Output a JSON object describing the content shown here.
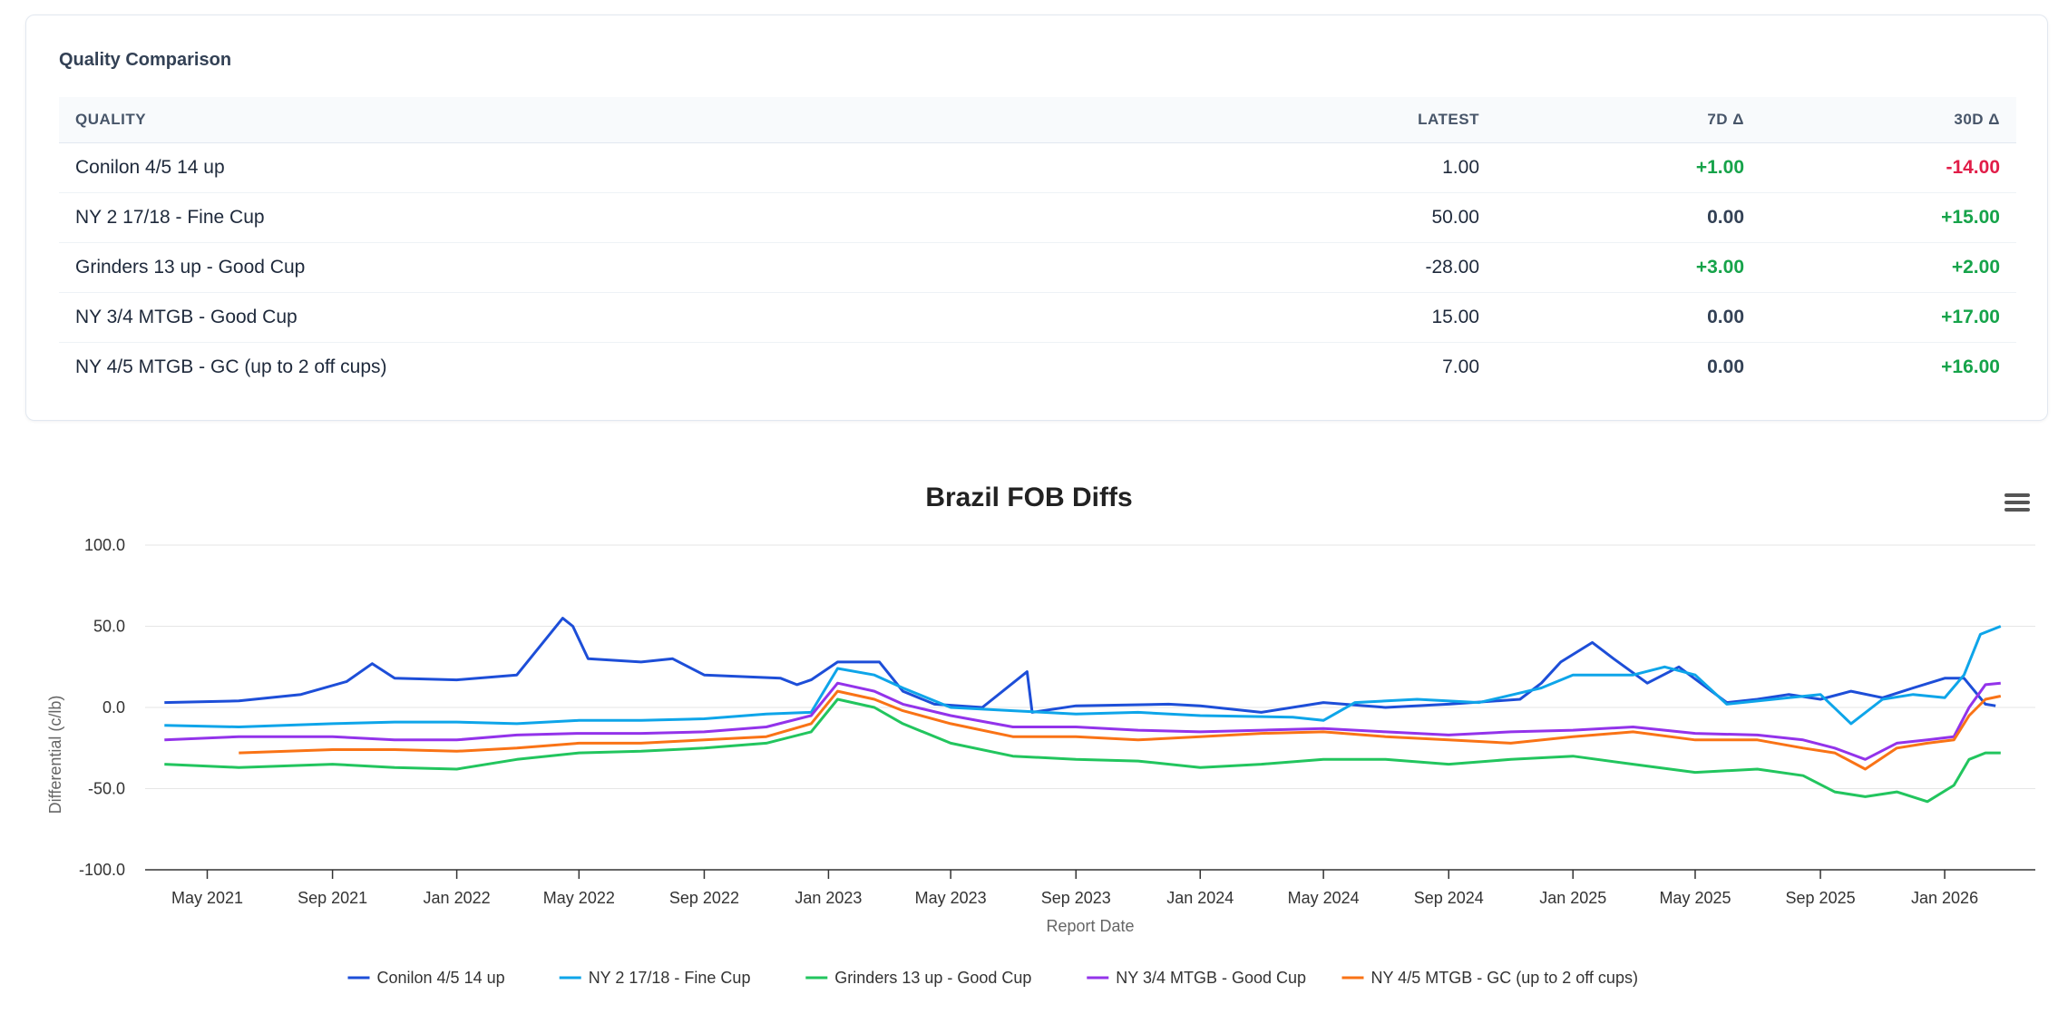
{
  "comparison": {
    "title": "Quality Comparison",
    "headers": {
      "quality": "QUALITY",
      "latest": "LATEST",
      "d7": "7D Δ",
      "d30": "30D Δ"
    },
    "rows": [
      {
        "quality": "Conilon 4/5 14 up",
        "latest": "1.00",
        "d7": "+1.00",
        "d30": "-14.00"
      },
      {
        "quality": "NY 2 17/18 - Fine Cup",
        "latest": "50.00",
        "d7": "0.00",
        "d30": "+15.00"
      },
      {
        "quality": "Grinders 13 up - Good Cup",
        "latest": "-28.00",
        "d7": "+3.00",
        "d30": "+2.00"
      },
      {
        "quality": "NY 3/4 MTGB - Good Cup",
        "latest": "15.00",
        "d7": "0.00",
        "d30": "+17.00"
      },
      {
        "quality": "NY 4/5 MTGB - GC (up to 2 off cups)",
        "latest": "7.00",
        "d7": "0.00",
        "d30": "+16.00"
      }
    ]
  },
  "colors": {
    "positive": "#16a34a",
    "negative": "#e11d48",
    "neutral": "#334155"
  },
  "chart_menu_icon": "hamburger-menu-icon",
  "chart_data": {
    "type": "line",
    "title": "Brazil FOB Diffs",
    "xlabel": "Report Date",
    "ylabel": "Differential (c/lb)",
    "ylim": [
      -100,
      100
    ],
    "yticks": [
      100,
      50,
      0,
      -50,
      -100
    ],
    "ytick_labels": [
      "100.0",
      "50.0",
      "0.0",
      "-50.0",
      "-100.0"
    ],
    "xlim": [
      "2021-03-01",
      "2026-03-31"
    ],
    "xticks": [
      "2021-05-01",
      "2021-09-01",
      "2022-01-01",
      "2022-05-01",
      "2022-09-01",
      "2023-01-01",
      "2023-05-01",
      "2023-09-01",
      "2024-01-01",
      "2024-05-01",
      "2024-09-01",
      "2025-01-01",
      "2025-05-01",
      "2025-09-01",
      "2026-01-01"
    ],
    "xtick_labels": [
      "May 2021",
      "Sep 2021",
      "Jan 2022",
      "May 2022",
      "Sep 2022",
      "Jan 2023",
      "May 2023",
      "Sep 2023",
      "Jan 2024",
      "May 2024",
      "Sep 2024",
      "Jan 2025",
      "May 2025",
      "Sep 2025",
      "Jan 2026"
    ],
    "grid": true,
    "legend": "bottom",
    "series": [
      {
        "name": "Conilon 4/5 14 up",
        "color": "#1d4ed8",
        "points": [
          [
            "2021-03-20",
            3
          ],
          [
            "2021-06-01",
            4
          ],
          [
            "2021-08-01",
            8
          ],
          [
            "2021-09-15",
            16
          ],
          [
            "2021-10-10",
            27
          ],
          [
            "2021-11-01",
            18
          ],
          [
            "2022-01-01",
            17
          ],
          [
            "2022-03-01",
            20
          ],
          [
            "2022-04-15",
            55
          ],
          [
            "2022-04-25",
            50
          ],
          [
            "2022-05-10",
            30
          ],
          [
            "2022-07-01",
            28
          ],
          [
            "2022-08-01",
            30
          ],
          [
            "2022-09-01",
            20
          ],
          [
            "2022-11-15",
            18
          ],
          [
            "2022-12-01",
            14
          ],
          [
            "2022-12-15",
            17
          ],
          [
            "2023-01-10",
            28
          ],
          [
            "2023-02-20",
            28
          ],
          [
            "2023-03-15",
            10
          ],
          [
            "2023-04-15",
            2
          ],
          [
            "2023-06-01",
            0
          ],
          [
            "2023-07-15",
            22
          ],
          [
            "2023-07-20",
            -3
          ],
          [
            "2023-09-01",
            1
          ],
          [
            "2023-12-01",
            2
          ],
          [
            "2024-01-01",
            1
          ],
          [
            "2024-03-01",
            -3
          ],
          [
            "2024-05-01",
            3
          ],
          [
            "2024-07-01",
            0
          ],
          [
            "2024-09-01",
            2
          ],
          [
            "2024-11-10",
            5
          ],
          [
            "2024-12-01",
            15
          ],
          [
            "2024-12-20",
            28
          ],
          [
            "2025-01-20",
            40
          ],
          [
            "2025-02-10",
            30
          ],
          [
            "2025-03-15",
            15
          ],
          [
            "2025-04-15",
            25
          ],
          [
            "2025-06-01",
            3
          ],
          [
            "2025-07-01",
            5
          ],
          [
            "2025-08-01",
            8
          ],
          [
            "2025-09-01",
            5
          ],
          [
            "2025-10-01",
            10
          ],
          [
            "2025-11-01",
            6
          ],
          [
            "2025-12-01",
            12
          ],
          [
            "2026-01-01",
            18
          ],
          [
            "2026-01-20",
            18
          ],
          [
            "2026-02-10",
            2
          ],
          [
            "2026-02-20",
            1
          ]
        ]
      },
      {
        "name": "NY 2 17/18 - Fine Cup",
        "color": "#0ea5e9",
        "points": [
          [
            "2021-03-20",
            -11
          ],
          [
            "2021-06-01",
            -12
          ],
          [
            "2021-09-01",
            -10
          ],
          [
            "2021-11-01",
            -9
          ],
          [
            "2022-01-01",
            -9
          ],
          [
            "2022-03-01",
            -10
          ],
          [
            "2022-05-01",
            -8
          ],
          [
            "2022-07-01",
            -8
          ],
          [
            "2022-09-01",
            -7
          ],
          [
            "2022-11-01",
            -4
          ],
          [
            "2022-12-15",
            -3
          ],
          [
            "2023-01-10",
            24
          ],
          [
            "2023-02-15",
            20
          ],
          [
            "2023-03-15",
            12
          ],
          [
            "2023-05-01",
            0
          ],
          [
            "2023-07-01",
            -2
          ],
          [
            "2023-09-01",
            -4
          ],
          [
            "2023-11-01",
            -3
          ],
          [
            "2024-01-01",
            -5
          ],
          [
            "2024-04-01",
            -6
          ],
          [
            "2024-05-01",
            -8
          ],
          [
            "2024-06-01",
            3
          ],
          [
            "2024-08-01",
            5
          ],
          [
            "2024-10-01",
            3
          ],
          [
            "2024-12-01",
            12
          ],
          [
            "2025-01-01",
            20
          ],
          [
            "2025-03-01",
            20
          ],
          [
            "2025-04-01",
            25
          ],
          [
            "2025-05-01",
            20
          ],
          [
            "2025-06-01",
            2
          ],
          [
            "2025-08-01",
            6
          ],
          [
            "2025-09-01",
            8
          ],
          [
            "2025-10-01",
            -10
          ],
          [
            "2025-11-01",
            5
          ],
          [
            "2025-12-01",
            8
          ],
          [
            "2026-01-01",
            6
          ],
          [
            "2026-01-20",
            20
          ],
          [
            "2026-02-05",
            45
          ],
          [
            "2026-02-25",
            50
          ]
        ]
      },
      {
        "name": "Grinders 13 up - Good Cup",
        "color": "#22c55e",
        "points": [
          [
            "2021-03-20",
            -35
          ],
          [
            "2021-06-01",
            -37
          ],
          [
            "2021-09-01",
            -35
          ],
          [
            "2021-11-01",
            -37
          ],
          [
            "2022-01-01",
            -38
          ],
          [
            "2022-03-01",
            -32
          ],
          [
            "2022-05-01",
            -28
          ],
          [
            "2022-07-01",
            -27
          ],
          [
            "2022-09-01",
            -25
          ],
          [
            "2022-11-01",
            -22
          ],
          [
            "2022-12-15",
            -15
          ],
          [
            "2023-01-10",
            5
          ],
          [
            "2023-02-15",
            0
          ],
          [
            "2023-03-15",
            -10
          ],
          [
            "2023-05-01",
            -22
          ],
          [
            "2023-07-01",
            -30
          ],
          [
            "2023-09-01",
            -32
          ],
          [
            "2023-11-01",
            -33
          ],
          [
            "2024-01-01",
            -37
          ],
          [
            "2024-03-01",
            -35
          ],
          [
            "2024-05-01",
            -32
          ],
          [
            "2024-07-01",
            -32
          ],
          [
            "2024-09-01",
            -35
          ],
          [
            "2024-11-01",
            -32
          ],
          [
            "2025-01-01",
            -30
          ],
          [
            "2025-03-01",
            -35
          ],
          [
            "2025-05-01",
            -40
          ],
          [
            "2025-07-01",
            -38
          ],
          [
            "2025-08-15",
            -42
          ],
          [
            "2025-09-15",
            -52
          ],
          [
            "2025-10-15",
            -55
          ],
          [
            "2025-11-15",
            -52
          ],
          [
            "2025-12-15",
            -58
          ],
          [
            "2026-01-10",
            -48
          ],
          [
            "2026-01-25",
            -32
          ],
          [
            "2026-02-10",
            -28
          ],
          [
            "2026-02-25",
            -28
          ]
        ]
      },
      {
        "name": "NY 3/4 MTGB - Good Cup",
        "color": "#9333ea",
        "points": [
          [
            "2021-03-20",
            -20
          ],
          [
            "2021-06-01",
            -18
          ],
          [
            "2021-09-01",
            -18
          ],
          [
            "2021-11-01",
            -20
          ],
          [
            "2022-01-01",
            -20
          ],
          [
            "2022-03-01",
            -17
          ],
          [
            "2022-05-01",
            -16
          ],
          [
            "2022-07-01",
            -16
          ],
          [
            "2022-09-01",
            -15
          ],
          [
            "2022-11-01",
            -12
          ],
          [
            "2022-12-15",
            -5
          ],
          [
            "2023-01-10",
            15
          ],
          [
            "2023-02-15",
            10
          ],
          [
            "2023-03-15",
            2
          ],
          [
            "2023-05-01",
            -5
          ],
          [
            "2023-07-01",
            -12
          ],
          [
            "2023-09-01",
            -12
          ],
          [
            "2023-11-01",
            -14
          ],
          [
            "2024-01-01",
            -15
          ],
          [
            "2024-03-01",
            -14
          ],
          [
            "2024-05-01",
            -13
          ],
          [
            "2024-07-01",
            -15
          ],
          [
            "2024-09-01",
            -17
          ],
          [
            "2024-11-01",
            -15
          ],
          [
            "2025-01-01",
            -14
          ],
          [
            "2025-03-01",
            -12
          ],
          [
            "2025-05-01",
            -16
          ],
          [
            "2025-07-01",
            -17
          ],
          [
            "2025-08-15",
            -20
          ],
          [
            "2025-09-15",
            -25
          ],
          [
            "2025-10-15",
            -32
          ],
          [
            "2025-11-15",
            -22
          ],
          [
            "2025-12-15",
            -20
          ],
          [
            "2026-01-10",
            -18
          ],
          [
            "2026-01-25",
            0
          ],
          [
            "2026-02-10",
            14
          ],
          [
            "2026-02-25",
            15
          ]
        ]
      },
      {
        "name": "NY 4/5 MTGB - GC (up to 2 off cups)",
        "color": "#f97316",
        "points": [
          [
            "2021-06-01",
            -28
          ],
          [
            "2021-09-01",
            -26
          ],
          [
            "2021-11-01",
            -26
          ],
          [
            "2022-01-01",
            -27
          ],
          [
            "2022-03-01",
            -25
          ],
          [
            "2022-05-01",
            -22
          ],
          [
            "2022-07-01",
            -22
          ],
          [
            "2022-09-01",
            -20
          ],
          [
            "2022-11-01",
            -18
          ],
          [
            "2022-12-15",
            -10
          ],
          [
            "2023-01-10",
            10
          ],
          [
            "2023-02-15",
            5
          ],
          [
            "2023-03-15",
            -2
          ],
          [
            "2023-05-01",
            -10
          ],
          [
            "2023-07-01",
            -18
          ],
          [
            "2023-09-01",
            -18
          ],
          [
            "2023-11-01",
            -20
          ],
          [
            "2024-01-01",
            -18
          ],
          [
            "2024-03-01",
            -16
          ],
          [
            "2024-05-01",
            -15
          ],
          [
            "2024-07-01",
            -18
          ],
          [
            "2024-09-01",
            -20
          ],
          [
            "2024-11-01",
            -22
          ],
          [
            "2025-01-01",
            -18
          ],
          [
            "2025-03-01",
            -15
          ],
          [
            "2025-05-01",
            -20
          ],
          [
            "2025-07-01",
            -20
          ],
          [
            "2025-08-15",
            -25
          ],
          [
            "2025-09-15",
            -28
          ],
          [
            "2025-10-15",
            -38
          ],
          [
            "2025-11-15",
            -25
          ],
          [
            "2025-12-15",
            -22
          ],
          [
            "2026-01-10",
            -20
          ],
          [
            "2026-01-25",
            -5
          ],
          [
            "2026-02-10",
            5
          ],
          [
            "2026-02-25",
            7
          ]
        ]
      }
    ]
  }
}
